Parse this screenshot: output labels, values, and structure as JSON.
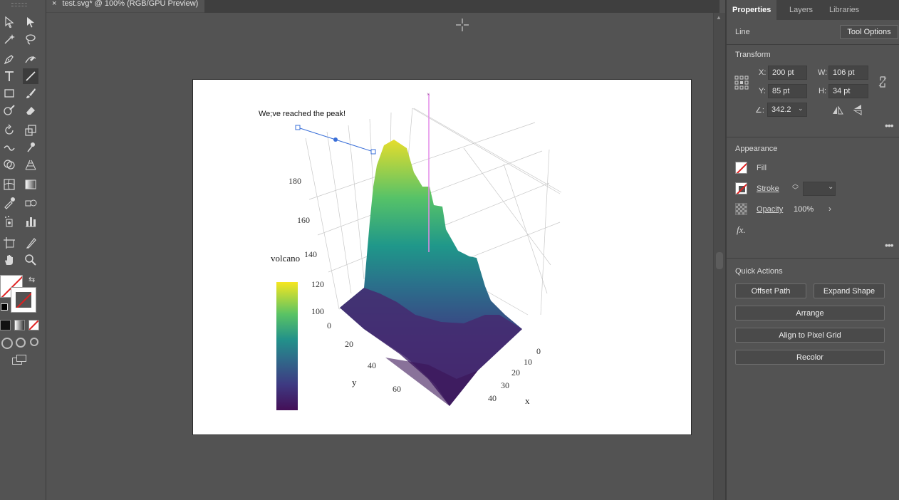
{
  "document_tab": {
    "close": "×",
    "title": "test.svg* @ 100% (RGB/GPU Preview)"
  },
  "toolbar": {
    "tools": [
      "selection-tool",
      "direct-selection-tool",
      "magic-wand-tool",
      "lasso-tool",
      "pen-tool",
      "curvature-tool",
      "type-tool",
      "line-segment-tool",
      "rectangle-tool",
      "paintbrush-tool",
      "shaper-tool",
      "eraser-tool",
      "rotate-tool",
      "scale-tool",
      "warp-tool",
      "puppet-warp-tool",
      "shape-builder-tool",
      "perspective-grid-tool",
      "mesh-tool",
      "gradient-tool",
      "eyedropper-tool",
      "blend-tool",
      "symbol-sprayer-tool",
      "column-graph-tool",
      "artboard-tool",
      "slice-tool",
      "hand-tool",
      "zoom-tool"
    ]
  },
  "panel": {
    "tabs": [
      "Properties",
      "Layers",
      "Libraries"
    ],
    "selection_type": "Line",
    "tool_options": "Tool Options",
    "transform": {
      "title": "Transform",
      "x_label": "X:",
      "x": "200 pt",
      "y_label": "Y:",
      "y": "85 pt",
      "w_label": "W:",
      "w": "106 pt",
      "h_label": "H:",
      "h": "34 pt",
      "angle_label": "∠:",
      "angle": "342.2"
    },
    "appearance": {
      "title": "Appearance",
      "fill": "Fill",
      "stroke": "Stroke",
      "opacity_label": "Opacity",
      "opacity": "100%",
      "fx": "fx."
    },
    "quick_actions": {
      "title": "Quick Actions",
      "offset_path": "Offset Path",
      "expand_shape": "Expand Shape",
      "arrange": "Arrange",
      "align": "Align to Pixel Grid",
      "recolor": "Recolor"
    }
  },
  "artwork": {
    "annotation": "We;ve reached the peak!",
    "colorbar_title": "volcano",
    "z_ticks": [
      "100",
      "120",
      "140",
      "160",
      "180"
    ],
    "y_axis_label": "y",
    "y_ticks": [
      "0",
      "20",
      "40",
      "60"
    ],
    "x_axis_label": "x",
    "x_ticks": [
      "0",
      "10",
      "20",
      "30",
      "40"
    ],
    "colors": {
      "low": "#45125a",
      "mid": "#2a8a8a",
      "high": "#e8e027",
      "selection": "#3a6fd8",
      "guide": "#e38be8"
    }
  }
}
